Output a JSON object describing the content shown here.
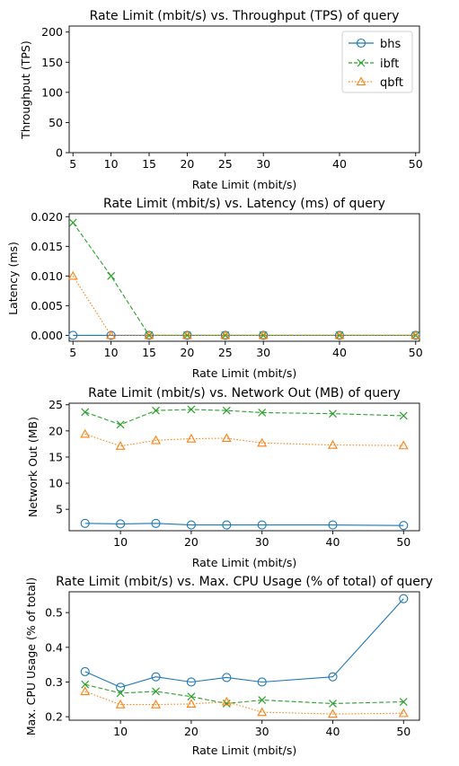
{
  "figure": {
    "background": "#ffffff"
  },
  "chart_data": [
    {
      "type": "line",
      "title": "Rate Limit (mbit/s) vs. Throughput (TPS) of query",
      "xlabel": "Rate Limit (mbit/s)",
      "ylabel": "Throughput (TPS)",
      "xlim": [
        4.5,
        50.5
      ],
      "ylim": [
        0,
        210
      ],
      "xticks": [
        5,
        10,
        15,
        20,
        25,
        30,
        40,
        50
      ],
      "yticks": [
        0,
        50,
        100,
        150,
        200
      ],
      "legend": "top-right",
      "series": [
        {
          "name": "bhs",
          "color": "#1f77b4",
          "marker": "circle",
          "dash": "solid",
          "x": [],
          "y": []
        },
        {
          "name": "ibft",
          "color": "#2ca02c",
          "marker": "x",
          "dash": "dashed",
          "x": [],
          "y": []
        },
        {
          "name": "qbft",
          "color": "#ff7f0e",
          "marker": "triangle",
          "dash": "dotted",
          "x": [],
          "y": []
        }
      ]
    },
    {
      "type": "line",
      "title": "Rate Limit (mbit/s) vs. Latency (ms) of query",
      "xlabel": "Rate Limit (mbit/s)",
      "ylabel": "Latency (ms)",
      "xlim": [
        4.5,
        50.5
      ],
      "ylim": [
        -0.001,
        0.0205
      ],
      "xticks": [
        5,
        10,
        15,
        20,
        25,
        30,
        40,
        50
      ],
      "yticks": [
        0.0,
        0.005,
        0.01,
        0.015,
        0.02
      ],
      "ytick_labels": [
        "0.000",
        "0.005",
        "0.010",
        "0.015",
        "0.020"
      ],
      "series": [
        {
          "color": "#1f77b4",
          "marker": "circle",
          "dash": "solid",
          "x": [
            5,
            10,
            15,
            20,
            25,
            30,
            40,
            50
          ],
          "y": [
            0,
            0,
            0,
            0,
            0,
            0,
            0,
            0
          ]
        },
        {
          "color": "#2ca02c",
          "marker": "x",
          "dash": "dashed",
          "x": [
            5,
            10,
            15,
            20,
            25,
            30,
            40,
            50
          ],
          "y": [
            0.019,
            0.01,
            0,
            0,
            0,
            0,
            0,
            0
          ]
        },
        {
          "color": "#ff7f0e",
          "marker": "triangle",
          "dash": "dotted",
          "x": [
            5,
            10,
            15,
            20,
            25,
            30,
            40,
            50
          ],
          "y": [
            0.01,
            0,
            0,
            0,
            0,
            0,
            0,
            0
          ]
        }
      ]
    },
    {
      "type": "line",
      "title": "Rate Limit (mbit/s) vs. Network Out (MB) of query",
      "xlabel": "Rate Limit (mbit/s)",
      "ylabel": "Network Out (MB)",
      "xlim": [
        2.75,
        52.25
      ],
      "ylim": [
        0.9,
        25.3
      ],
      "xticks": [
        10,
        20,
        30,
        40,
        50
      ],
      "yticks": [
        5,
        10,
        15,
        20,
        25
      ],
      "series": [
        {
          "color": "#1f77b4",
          "marker": "circle",
          "dash": "solid",
          "x": [
            5,
            10,
            15,
            20,
            25,
            30,
            40,
            50
          ],
          "y": [
            2.3,
            2.2,
            2.3,
            2.0,
            2.0,
            2.0,
            2.0,
            1.9
          ]
        },
        {
          "color": "#2ca02c",
          "marker": "x",
          "dash": "dashed",
          "x": [
            5,
            10,
            15,
            20,
            25,
            30,
            40,
            50
          ],
          "y": [
            23.6,
            21.2,
            23.9,
            24.1,
            23.9,
            23.5,
            23.3,
            22.9
          ]
        },
        {
          "color": "#ff7f0e",
          "marker": "triangle",
          "dash": "dotted",
          "x": [
            5,
            10,
            15,
            20,
            25,
            30,
            40,
            50
          ],
          "y": [
            19.4,
            17.1,
            18.2,
            18.5,
            18.6,
            17.7,
            17.3,
            17.2
          ]
        }
      ]
    },
    {
      "type": "line",
      "title": "Rate Limit (mbit/s) vs. Max. CPU Usage (% of total) of query",
      "xlabel": "Rate Limit (mbit/s)",
      "ylabel": "Max. CPU Usage (% of total)",
      "xlim": [
        2.75,
        52.25
      ],
      "ylim": [
        0.19,
        0.56
      ],
      "xticks": [
        10,
        20,
        30,
        40,
        50
      ],
      "yticks": [
        0.2,
        0.3,
        0.4,
        0.5
      ],
      "ytick_labels": [
        "0.2",
        "0.3",
        "0.4",
        "0.5"
      ],
      "series": [
        {
          "color": "#1f77b4",
          "marker": "circle",
          "dash": "solid",
          "x": [
            5,
            10,
            15,
            20,
            25,
            30,
            40,
            50
          ],
          "y": [
            0.33,
            0.285,
            0.315,
            0.3,
            0.313,
            0.3,
            0.315,
            0.54
          ]
        },
        {
          "color": "#2ca02c",
          "marker": "x",
          "dash": "dashed",
          "x": [
            5,
            10,
            15,
            20,
            25,
            30,
            40,
            50
          ],
          "y": [
            0.293,
            0.268,
            0.273,
            0.258,
            0.238,
            0.248,
            0.238,
            0.243
          ]
        },
        {
          "color": "#ff7f0e",
          "marker": "triangle",
          "dash": "dotted",
          "x": [
            5,
            10,
            15,
            20,
            25,
            30,
            40,
            50
          ],
          "y": [
            0.273,
            0.235,
            0.235,
            0.237,
            0.243,
            0.213,
            0.208,
            0.21
          ]
        }
      ]
    }
  ]
}
